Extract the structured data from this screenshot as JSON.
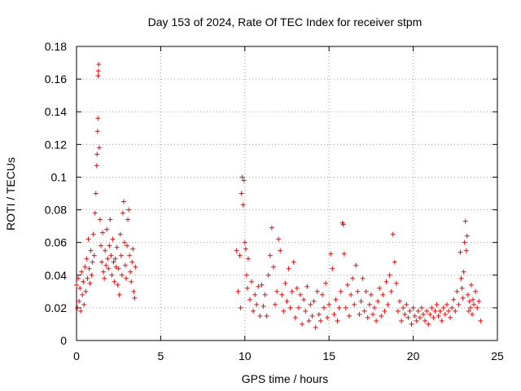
{
  "chart_data": {
    "type": "scatter",
    "title": "Day 153 of 2024, Rate Of TEC Index for receiver stpm",
    "xlabel": "GPS time / hours",
    "ylabel": "ROTI / TECUs",
    "xlim": [
      0,
      25
    ],
    "ylim": [
      0,
      0.18
    ],
    "xticks": [
      0,
      5,
      10,
      15,
      20,
      25
    ],
    "xtick_labels": [
      "0",
      "5",
      "10",
      "15",
      "20",
      "25"
    ],
    "yticks": [
      0,
      0.02,
      0.04,
      0.06,
      0.08,
      0.1,
      0.12,
      0.14,
      0.16,
      0.18
    ],
    "ytick_labels": [
      "0",
      "0.02",
      "0.04",
      "0.06",
      "0.08",
      "0.1",
      "0.12",
      "0.14",
      "0.16",
      "0.18"
    ],
    "grid": true,
    "marker": "+",
    "color": "#ff0000",
    "series": [
      {
        "name": "ROTI",
        "points": [
          [
            0.0,
            0.034
          ],
          [
            0.05,
            0.02
          ],
          [
            0.1,
            0.038
          ],
          [
            0.15,
            0.024
          ],
          [
            0.2,
            0.032
          ],
          [
            0.25,
            0.018
          ],
          [
            0.3,
            0.042
          ],
          [
            0.35,
            0.028
          ],
          [
            0.4,
            0.036
          ],
          [
            0.45,
            0.022
          ],
          [
            0.5,
            0.045
          ],
          [
            0.55,
            0.03
          ],
          [
            0.6,
            0.05
          ],
          [
            0.65,
            0.038
          ],
          [
            0.7,
            0.062
          ],
          [
            0.75,
            0.044
          ],
          [
            0.8,
            0.035
          ],
          [
            0.85,
            0.055
          ],
          [
            0.9,
            0.04
          ],
          [
            0.95,
            0.048
          ],
          [
            1.0,
            0.065
          ],
          [
            1.05,
            0.052
          ],
          [
            1.1,
            0.078
          ],
          [
            1.15,
            0.09
          ],
          [
            1.2,
            0.107
          ],
          [
            1.22,
            0.114
          ],
          [
            1.25,
            0.128
          ],
          [
            1.27,
            0.136
          ],
          [
            1.28,
            0.162
          ],
          [
            1.3,
            0.165
          ],
          [
            1.32,
            0.169
          ],
          [
            1.35,
            0.118
          ],
          [
            1.4,
            0.074
          ],
          [
            1.45,
            0.058
          ],
          [
            1.5,
            0.048
          ],
          [
            1.55,
            0.066
          ],
          [
            1.6,
            0.042
          ],
          [
            1.65,
            0.038
          ],
          [
            1.7,
            0.055
          ],
          [
            1.75,
            0.046
          ],
          [
            1.8,
            0.068
          ],
          [
            1.85,
            0.05
          ],
          [
            1.9,
            0.044
          ],
          [
            1.95,
            0.058
          ],
          [
            2.0,
            0.074
          ],
          [
            2.05,
            0.052
          ],
          [
            2.1,
            0.04
          ],
          [
            2.15,
            0.062
          ],
          [
            2.2,
            0.048
          ],
          [
            2.25,
            0.036
          ],
          [
            2.3,
            0.05
          ],
          [
            2.35,
            0.045
          ],
          [
            2.4,
            0.057
          ],
          [
            2.45,
            0.034
          ],
          [
            2.5,
            0.044
          ],
          [
            2.55,
            0.028
          ],
          [
            2.6,
            0.065
          ],
          [
            2.65,
            0.052
          ],
          [
            2.7,
            0.04
          ],
          [
            2.75,
            0.078
          ],
          [
            2.8,
            0.085
          ],
          [
            2.85,
            0.06
          ],
          [
            2.9,
            0.046
          ],
          [
            2.95,
            0.038
          ],
          [
            3.0,
            0.058
          ],
          [
            3.05,
            0.074
          ],
          [
            3.1,
            0.08
          ],
          [
            3.15,
            0.052
          ],
          [
            3.2,
            0.042
          ],
          [
            3.25,
            0.036
          ],
          [
            3.3,
            0.048
          ],
          [
            3.35,
            0.056
          ],
          [
            3.4,
            0.03
          ],
          [
            3.45,
            0.026
          ],
          [
            3.5,
            0.045
          ],
          [
            9.5,
            0.055
          ],
          [
            9.6,
            0.03
          ],
          [
            9.7,
            0.052
          ],
          [
            9.75,
            0.02
          ],
          [
            9.8,
            0.09
          ],
          [
            9.85,
            0.1
          ],
          [
            9.9,
            0.083
          ],
          [
            9.95,
            0.098
          ],
          [
            10.0,
            0.06
          ],
          [
            10.05,
            0.056
          ],
          [
            10.1,
            0.04
          ],
          [
            10.15,
            0.032
          ],
          [
            10.2,
            0.05
          ],
          [
            10.3,
            0.025
          ],
          [
            10.4,
            0.036
          ],
          [
            10.5,
            0.018
          ],
          [
            10.6,
            0.028
          ],
          [
            10.7,
            0.022
          ],
          [
            10.8,
            0.033
          ],
          [
            10.9,
            0.015
          ],
          [
            11.0,
            0.034
          ],
          [
            11.1,
            0.021
          ],
          [
            11.2,
            0.028
          ],
          [
            11.3,
            0.015
          ],
          [
            11.4,
            0.04
          ],
          [
            11.5,
            0.052
          ],
          [
            11.6,
            0.069
          ],
          [
            11.7,
            0.045
          ],
          [
            11.8,
            0.022
          ],
          [
            11.9,
            0.03
          ],
          [
            12.0,
            0.062
          ],
          [
            12.1,
            0.055
          ],
          [
            12.2,
            0.028
          ],
          [
            12.3,
            0.018
          ],
          [
            12.4,
            0.035
          ],
          [
            12.5,
            0.024
          ],
          [
            12.6,
            0.044
          ],
          [
            12.7,
            0.02
          ],
          [
            12.8,
            0.03
          ],
          [
            12.9,
            0.048
          ],
          [
            13.0,
            0.014
          ],
          [
            13.1,
            0.032
          ],
          [
            13.2,
            0.02
          ],
          [
            13.3,
            0.028
          ],
          [
            13.4,
            0.01
          ],
          [
            13.5,
            0.025
          ],
          [
            13.6,
            0.018
          ],
          [
            13.7,
            0.033
          ],
          [
            13.8,
            0.012
          ],
          [
            13.9,
            0.022
          ],
          [
            14.0,
            0.015
          ],
          [
            14.1,
            0.024
          ],
          [
            14.2,
            0.008
          ],
          [
            14.3,
            0.03
          ],
          [
            14.4,
            0.016
          ],
          [
            14.5,
            0.012
          ],
          [
            14.6,
            0.028
          ],
          [
            14.7,
            0.02
          ],
          [
            14.8,
            0.035
          ],
          [
            14.9,
            0.014
          ],
          [
            15.0,
            0.022
          ],
          [
            15.1,
            0.053
          ],
          [
            15.2,
            0.044
          ],
          [
            15.3,
            0.016
          ],
          [
            15.4,
            0.025
          ],
          [
            15.5,
            0.012
          ],
          [
            15.6,
            0.02
          ],
          [
            15.7,
            0.03
          ],
          [
            15.8,
            0.072
          ],
          [
            15.85,
            0.071
          ],
          [
            15.9,
            0.053
          ],
          [
            16.0,
            0.02
          ],
          [
            16.1,
            0.034
          ],
          [
            16.2,
            0.015
          ],
          [
            16.3,
            0.028
          ],
          [
            16.4,
            0.038
          ],
          [
            16.5,
            0.022
          ],
          [
            16.6,
            0.046
          ],
          [
            16.7,
            0.03
          ],
          [
            16.8,
            0.016
          ],
          [
            16.9,
            0.024
          ],
          [
            17.0,
            0.038
          ],
          [
            17.1,
            0.018
          ],
          [
            17.2,
            0.03
          ],
          [
            17.3,
            0.014
          ],
          [
            17.4,
            0.022
          ],
          [
            17.5,
            0.028
          ],
          [
            17.6,
            0.016
          ],
          [
            17.7,
            0.02
          ],
          [
            17.8,
            0.012
          ],
          [
            17.9,
            0.024
          ],
          [
            18.0,
            0.032
          ],
          [
            18.1,
            0.015
          ],
          [
            18.2,
            0.028
          ],
          [
            18.3,
            0.018
          ],
          [
            18.4,
            0.036
          ],
          [
            18.5,
            0.022
          ],
          [
            18.6,
            0.04
          ],
          [
            18.7,
            0.03
          ],
          [
            18.8,
            0.065
          ],
          [
            18.9,
            0.048
          ],
          [
            19.0,
            0.035
          ],
          [
            19.1,
            0.018
          ],
          [
            19.2,
            0.024
          ],
          [
            19.3,
            0.012
          ],
          [
            19.4,
            0.02
          ],
          [
            19.5,
            0.016
          ],
          [
            19.6,
            0.022
          ],
          [
            19.7,
            0.014
          ],
          [
            19.8,
            0.018
          ],
          [
            19.9,
            0.01
          ],
          [
            20.0,
            0.02
          ],
          [
            20.1,
            0.015
          ],
          [
            20.2,
            0.012
          ],
          [
            20.3,
            0.018
          ],
          [
            20.4,
            0.014
          ],
          [
            20.5,
            0.02
          ],
          [
            20.6,
            0.016
          ],
          [
            20.7,
            0.012
          ],
          [
            20.8,
            0.018
          ],
          [
            20.9,
            0.01
          ],
          [
            21.0,
            0.016
          ],
          [
            21.1,
            0.02
          ],
          [
            21.2,
            0.014
          ],
          [
            21.3,
            0.018
          ],
          [
            21.4,
            0.022
          ],
          [
            21.5,
            0.015
          ],
          [
            21.6,
            0.018
          ],
          [
            21.7,
            0.012
          ],
          [
            21.8,
            0.02
          ],
          [
            21.9,
            0.016
          ],
          [
            22.0,
            0.022
          ],
          [
            22.1,
            0.018
          ],
          [
            22.2,
            0.014
          ],
          [
            22.3,
            0.02
          ],
          [
            22.4,
            0.025
          ],
          [
            22.5,
            0.018
          ],
          [
            22.6,
            0.03
          ],
          [
            22.7,
            0.022
          ],
          [
            22.8,
            0.054
          ],
          [
            22.85,
            0.038
          ],
          [
            22.9,
            0.032
          ],
          [
            22.95,
            0.026
          ],
          [
            23.0,
            0.042
          ],
          [
            23.05,
            0.06
          ],
          [
            23.1,
            0.073
          ],
          [
            23.15,
            0.055
          ],
          [
            23.2,
            0.064
          ],
          [
            23.25,
            0.028
          ],
          [
            23.3,
            0.018
          ],
          [
            23.35,
            0.024
          ],
          [
            23.4,
            0.02
          ],
          [
            23.45,
            0.034
          ],
          [
            23.5,
            0.016
          ],
          [
            23.55,
            0.025
          ],
          [
            23.6,
            0.022
          ],
          [
            23.7,
            0.03
          ],
          [
            23.8,
            0.02
          ],
          [
            23.9,
            0.024
          ],
          [
            24.0,
            0.012
          ]
        ]
      }
    ]
  }
}
